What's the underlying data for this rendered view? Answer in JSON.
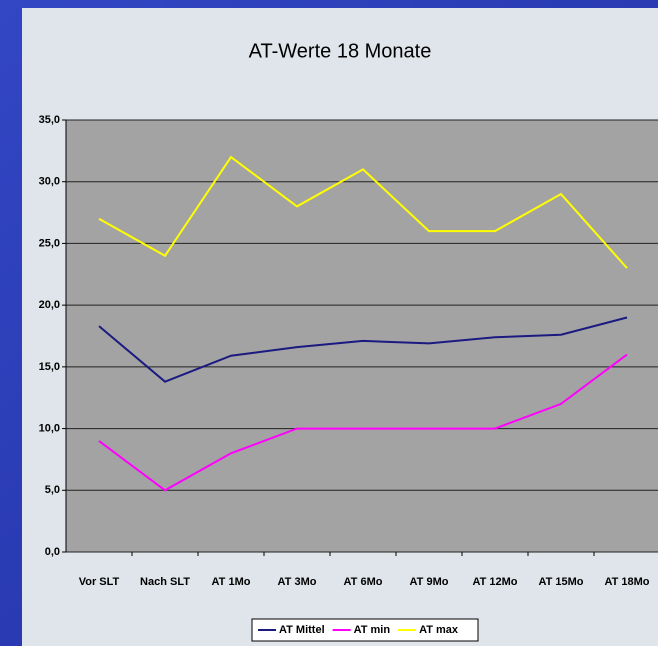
{
  "chart_data": {
    "type": "line",
    "title": "AT-Werte 18 Monate",
    "categories": [
      "Vor SLT",
      "Nach SLT",
      "AT 1Mo",
      "AT 3Mo",
      "AT 6Mo",
      "AT 9Mo",
      "AT 12Mo",
      "AT 15Mo",
      "AT 18Mo"
    ],
    "series": [
      {
        "name": "AT Mittel",
        "color": "#1a1a80",
        "values": [
          18.3,
          13.8,
          15.9,
          16.6,
          17.1,
          16.9,
          17.4,
          17.6,
          19.0
        ]
      },
      {
        "name": "AT min",
        "color": "#ff00ff",
        "values": [
          9,
          5,
          8,
          10,
          10,
          10,
          10,
          12,
          16
        ]
      },
      {
        "name": "AT max",
        "color": "#ffff00",
        "values": [
          27,
          24,
          32,
          28,
          31,
          26,
          26,
          29,
          23
        ]
      }
    ],
    "ylim": [
      0,
      35
    ],
    "yticks": [
      {
        "value": 0,
        "label": "0,0"
      },
      {
        "value": 5,
        "label": "5,0"
      },
      {
        "value": 10,
        "label": "10,0"
      },
      {
        "value": 15,
        "label": "15,0"
      },
      {
        "value": 20,
        "label": "20,0"
      },
      {
        "value": 25,
        "label": "25,0"
      },
      {
        "value": 30,
        "label": "30,0"
      },
      {
        "value": 35,
        "label": "35,0"
      }
    ],
    "grid": true,
    "legend": "bottom"
  }
}
